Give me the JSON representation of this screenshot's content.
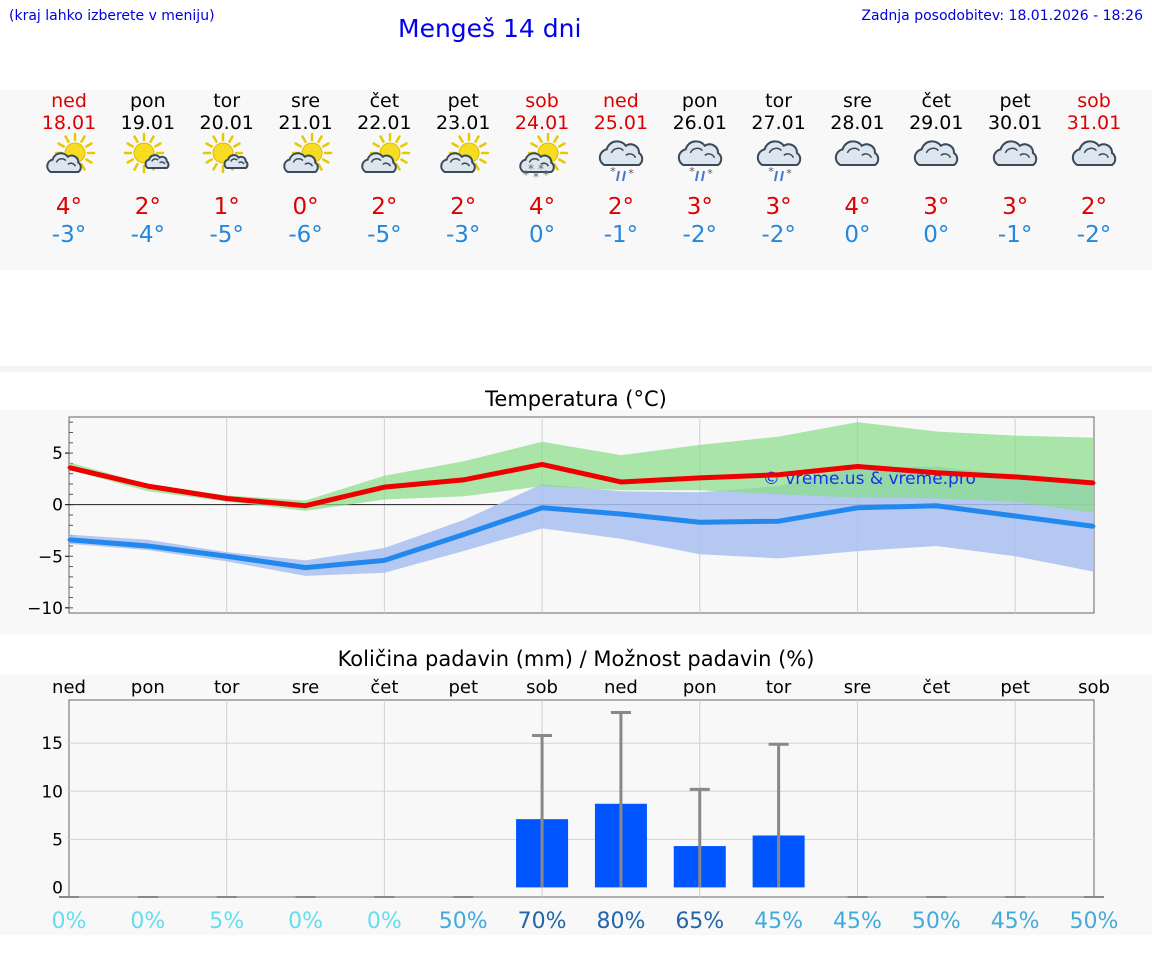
{
  "header": {
    "note": "(kraj lahko izberete v meniju)",
    "title": "Mengeš 14 dni",
    "updated": "Zadnja posodobitev: 18.01.2026 - 18:26"
  },
  "colors": {
    "weekend": "#dd0000",
    "weekday": "#000000",
    "max_temp": "#dd0000",
    "min_temp": "#2288dd"
  },
  "days": [
    {
      "name": "ned",
      "date": "18.01",
      "weekend": true,
      "icon": "sun-cloud-icon",
      "tmax": "4°",
      "tmin": "-3°"
    },
    {
      "name": "pon",
      "date": "19.01",
      "weekend": false,
      "icon": "sun-small-cloud-icon",
      "tmax": "2°",
      "tmin": "-4°"
    },
    {
      "name": "tor",
      "date": "20.01",
      "weekend": false,
      "icon": "sun-small-cloud-icon",
      "tmax": "1°",
      "tmin": "-5°"
    },
    {
      "name": "sre",
      "date": "21.01",
      "weekend": false,
      "icon": "sun-cloud-icon",
      "tmax": "0°",
      "tmin": "-6°"
    },
    {
      "name": "čet",
      "date": "22.01",
      "weekend": false,
      "icon": "sun-cloud-icon",
      "tmax": "2°",
      "tmin": "-5°"
    },
    {
      "name": "pet",
      "date": "23.01",
      "weekend": false,
      "icon": "sun-cloud-icon",
      "tmax": "2°",
      "tmin": "-3°"
    },
    {
      "name": "sob",
      "date": "24.01",
      "weekend": true,
      "icon": "sun-cloud-snow-icon",
      "tmax": "4°",
      "tmin": "0°"
    },
    {
      "name": "ned",
      "date": "25.01",
      "weekend": true,
      "icon": "cloud-sleet-icon",
      "tmax": "2°",
      "tmin": "-1°"
    },
    {
      "name": "pon",
      "date": "26.01",
      "weekend": false,
      "icon": "cloud-sleet-icon",
      "tmax": "3°",
      "tmin": "-2°"
    },
    {
      "name": "tor",
      "date": "27.01",
      "weekend": false,
      "icon": "cloud-sleet-icon",
      "tmax": "3°",
      "tmin": "-2°"
    },
    {
      "name": "sre",
      "date": "28.01",
      "weekend": false,
      "icon": "cloud-icon",
      "tmax": "4°",
      "tmin": "0°"
    },
    {
      "name": "čet",
      "date": "29.01",
      "weekend": false,
      "icon": "cloud-icon",
      "tmax": "3°",
      "tmin": "0°"
    },
    {
      "name": "pet",
      "date": "30.01",
      "weekend": false,
      "icon": "cloud-icon",
      "tmax": "3°",
      "tmin": "-1°"
    },
    {
      "name": "sob",
      "date": "31.01",
      "weekend": true,
      "icon": "cloud-icon",
      "tmax": "2°",
      "tmin": "-2°"
    }
  ],
  "chart_data": [
    {
      "type": "line",
      "title": "Temperatura (°C)",
      "xlabel": "",
      "ylabel": "",
      "x": [
        0,
        1,
        2,
        3,
        4,
        5,
        6,
        7,
        8,
        9,
        10,
        11,
        12,
        13
      ],
      "ylim": [
        -10.5,
        8.5
      ],
      "yticks": [
        5,
        0,
        -5,
        -10
      ],
      "ytick_labels": [
        "5",
        "0",
        "−5",
        "−10"
      ],
      "grid": true,
      "watermark": "© vreme.us & vreme.pro",
      "series": [
        {
          "name": "max",
          "color": "#ee0000",
          "values": [
            3.6,
            1.8,
            0.6,
            -0.1,
            1.7,
            2.4,
            3.9,
            2.2,
            2.6,
            2.9,
            3.7,
            3.1,
            2.7,
            2.1
          ]
        },
        {
          "name": "max-range",
          "color": "#88dd88",
          "low": [
            3.4,
            1.3,
            0.3,
            -0.6,
            0.5,
            0.8,
            1.8,
            1.4,
            1.4,
            1.0,
            0.7,
            0.6,
            0.3,
            -0.8
          ],
          "high": [
            4.1,
            2.0,
            0.9,
            0.4,
            2.8,
            4.2,
            6.1,
            4.8,
            5.8,
            6.6,
            8.0,
            7.1,
            6.7,
            6.5
          ]
        },
        {
          "name": "min",
          "color": "#2288ee",
          "values": [
            -3.4,
            -4.0,
            -5.0,
            -6.1,
            -5.4,
            -2.9,
            -0.3,
            -0.9,
            -1.7,
            -1.6,
            -0.3,
            -0.1,
            -1.1,
            -2.1
          ]
        },
        {
          "name": "min-range",
          "color": "#a8c0f0",
          "low": [
            -3.8,
            -4.4,
            -5.5,
            -6.9,
            -6.6,
            -4.5,
            -2.3,
            -3.3,
            -4.8,
            -5.2,
            -4.5,
            -4.0,
            -5.0,
            -6.5
          ],
          "high": [
            -2.9,
            -3.4,
            -4.6,
            -5.4,
            -4.2,
            -1.5,
            2.0,
            1.3,
            1.2,
            1.8,
            3.6,
            3.7,
            2.8,
            1.8
          ]
        }
      ]
    },
    {
      "type": "bar",
      "title": "Količina padavin (mm) / Možnost padavin (%)",
      "xlabel": "",
      "ylabel": "",
      "categories": [
        "ned",
        "pon",
        "tor",
        "sre",
        "čet",
        "pet",
        "sob",
        "ned",
        "pon",
        "tor",
        "sre",
        "čet",
        "pet",
        "sob"
      ],
      "values": [
        0,
        0,
        0,
        0,
        0,
        0,
        7.1,
        8.7,
        4.3,
        5.4,
        0,
        0,
        0,
        0
      ],
      "error_high": [
        0,
        0,
        0,
        0,
        0,
        0,
        15.8,
        18.2,
        10.2,
        14.9,
        0,
        0,
        0,
        0
      ],
      "ylim": [
        -1,
        19.5
      ],
      "yticks": [
        15,
        10,
        5,
        0
      ],
      "grid": true,
      "bar_color": "#0055ff",
      "probability": [
        "0%",
        "0%",
        "5%",
        "0%",
        "0%",
        "50%",
        "70%",
        "80%",
        "65%",
        "45%",
        "45%",
        "50%",
        "45%",
        "50%"
      ],
      "probability_colors": [
        "#66ddee",
        "#66ddee",
        "#66ddee",
        "#66ddee",
        "#66ddee",
        "#44aadd",
        "#2266aa",
        "#2266aa",
        "#2266aa",
        "#44aadd",
        "#44aadd",
        "#44aadd",
        "#44aadd",
        "#44aadd"
      ]
    }
  ]
}
